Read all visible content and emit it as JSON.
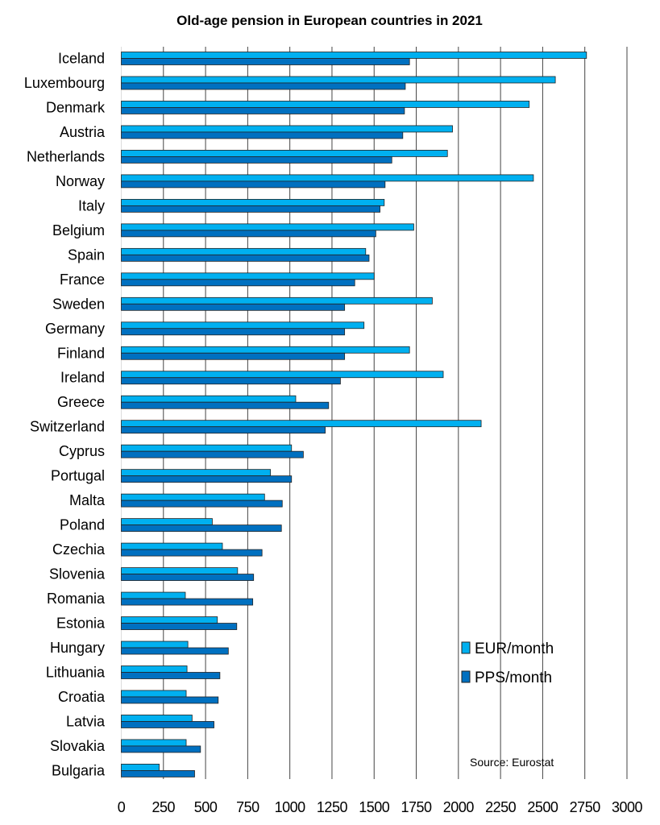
{
  "chart_data": {
    "type": "bar",
    "orientation": "horizontal",
    "title": "Old-age pension in European countries in 2021",
    "source": "Source: Eurostat",
    "xlabel": "",
    "ylabel": "",
    "xlim": [
      0,
      3000
    ],
    "xticks": [
      0,
      250,
      500,
      750,
      1000,
      1250,
      1500,
      1750,
      2000,
      2250,
      2500,
      2750,
      3000
    ],
    "grid": "vertical",
    "legend_position": "bottom-right",
    "categories": [
      "Iceland",
      "Luxembourg",
      "Denmark",
      "Austria",
      "Netherlands",
      "Norway",
      "Italy",
      "Belgium",
      "Spain",
      "France",
      "Sweden",
      "Germany",
      "Finland",
      "Ireland",
      "Greece",
      "Switzerland",
      "Cyprus",
      "Portugal",
      "Malta",
      "Poland",
      "Czechia",
      "Slovenia",
      "Romania",
      "Estonia",
      "Hungary",
      "Lithuania",
      "Croatia",
      "Latvia",
      "Slovakia",
      "Bulgaria"
    ],
    "series": [
      {
        "name": "EUR/month",
        "color": "#00b0f0",
        "values": [
          2760,
          2575,
          2420,
          1965,
          1935,
          2445,
          1560,
          1735,
          1450,
          1500,
          1845,
          1440,
          1710,
          1910,
          1035,
          2135,
          1010,
          885,
          850,
          540,
          600,
          690,
          380,
          570,
          395,
          390,
          385,
          420,
          385,
          225
        ]
      },
      {
        "name": "PPS/month",
        "color": "#0070c0",
        "values": [
          1710,
          1685,
          1680,
          1670,
          1605,
          1565,
          1535,
          1510,
          1470,
          1385,
          1325,
          1325,
          1325,
          1300,
          1230,
          1210,
          1080,
          1010,
          955,
          950,
          835,
          785,
          780,
          685,
          635,
          585,
          575,
          550,
          470,
          435
        ]
      }
    ]
  }
}
